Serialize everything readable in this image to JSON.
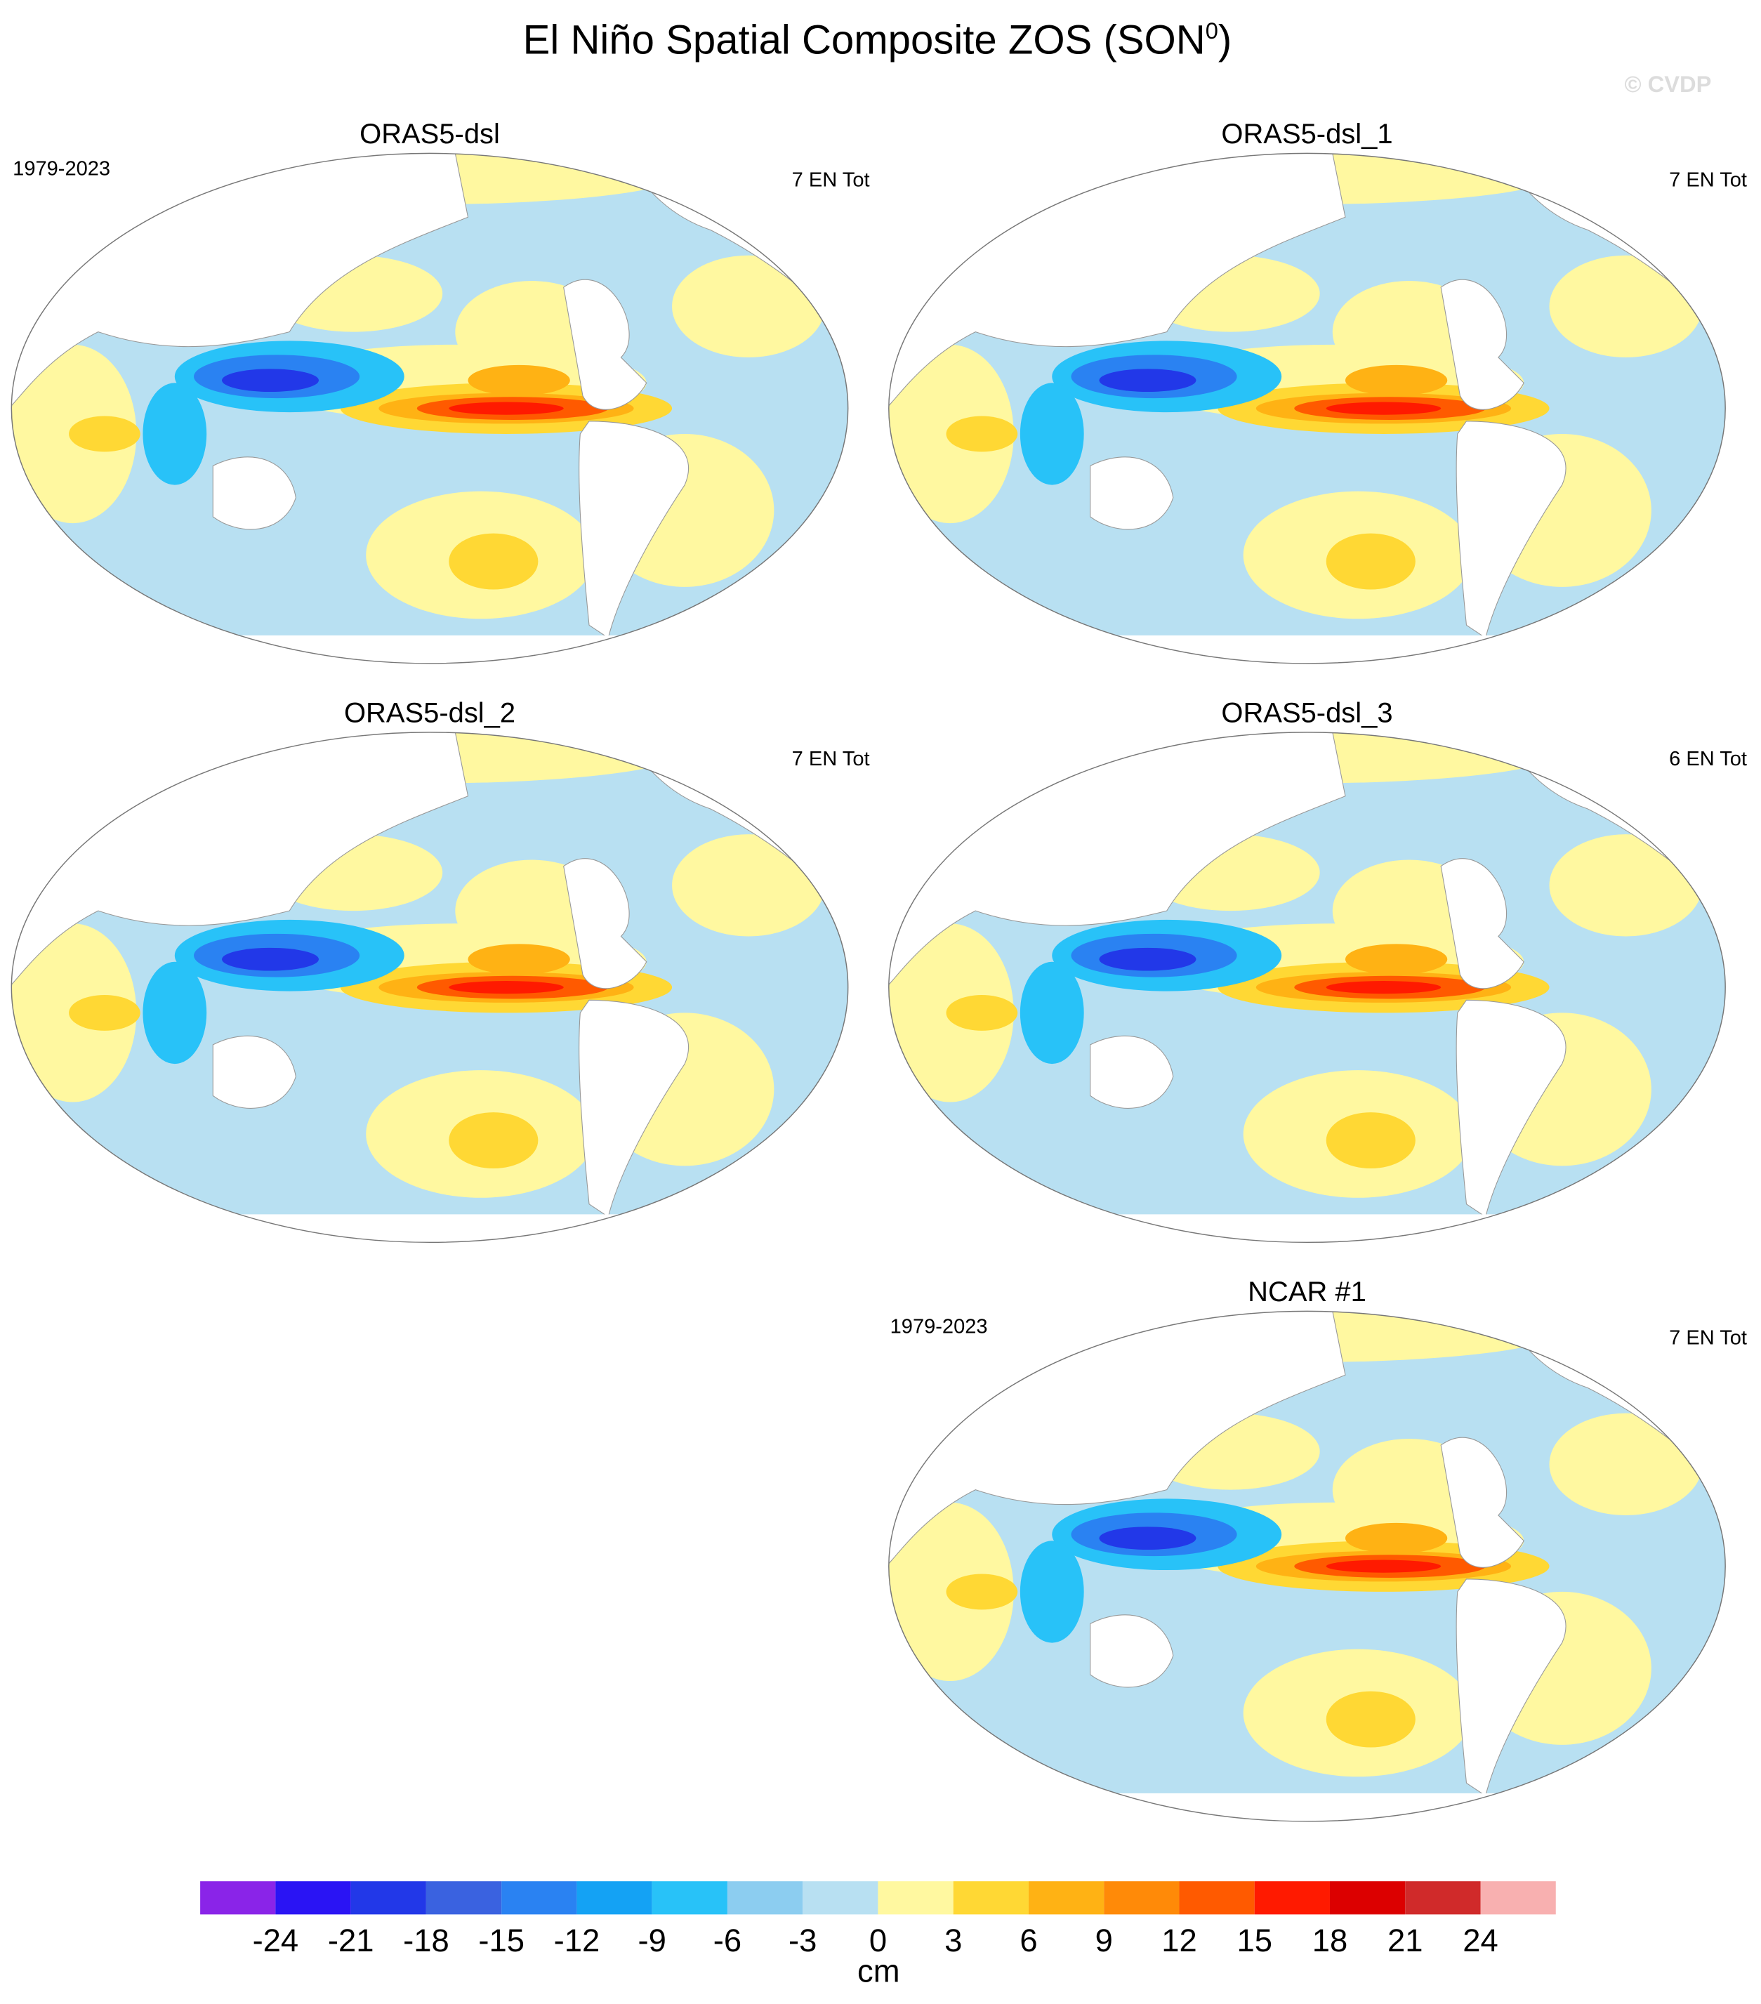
{
  "title": "El Niño Spatial Composite ZOS (SON",
  "title_sup": "0",
  "title_end": ")",
  "watermark": "© CVDP",
  "panels": [
    {
      "title": "ORAS5-dsl",
      "period": "1979-2023",
      "count": "7 EN Tot"
    },
    {
      "title": "ORAS5-dsl_1",
      "count": "7 EN Tot"
    },
    {
      "title": "ORAS5-dsl_2",
      "count": "7 EN Tot"
    },
    {
      "title": "ORAS5-dsl_3",
      "count": "6 EN Tot"
    },
    {
      "title": "NCAR #1",
      "period": "1979-2023",
      "count": "7 EN Tot"
    }
  ],
  "colorbar": {
    "levels": [
      -24,
      -21,
      -18,
      -15,
      -12,
      -9,
      -6,
      -3,
      0,
      3,
      6,
      9,
      12,
      15,
      18,
      21,
      24
    ],
    "colors": [
      "#8a24e8",
      "#2a14f4",
      "#2238e8",
      "#3a62e0",
      "#2a82f2",
      "#14a2f4",
      "#28c2f8",
      "#8ccdf0",
      "#b8e0f2",
      "#fff8a0",
      "#ffd834",
      "#ffb214",
      "#ff8a08",
      "#ff5a00",
      "#ff1a00",
      "#dc0000",
      "#d02a2a",
      "#f8b0b0"
    ],
    "unit": "cm"
  }
}
